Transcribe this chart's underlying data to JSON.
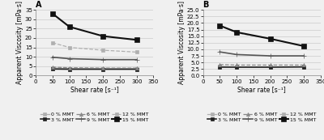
{
  "shear_rates": [
    50,
    100,
    200,
    300
  ],
  "panel_A": {
    "title": "A",
    "ylabel": "Apparent Viscosity [mPa·s]",
    "xlabel": "Shear rate [s⁻¹]",
    "ylim": [
      0,
      35
    ],
    "yticks": [
      0,
      5,
      10,
      15,
      20,
      25,
      30,
      35
    ],
    "xticks": [
      0,
      50,
      100,
      150,
      200,
      250,
      300,
      350
    ],
    "series": [
      {
        "label": "0 % MMT",
        "values": [
          4.0,
          3.8,
          3.7,
          3.7
        ],
        "color": "#b0b0b0",
        "marker": "s",
        "linewidth": 0.9,
        "markersize": 3,
        "linestyle": "-",
        "mfc": "#b0b0b0"
      },
      {
        "label": "3 % MMT",
        "values": [
          3.5,
          3.4,
          3.4,
          3.4
        ],
        "color": "#222222",
        "marker": "s",
        "linewidth": 1.2,
        "markersize": 3.5,
        "linestyle": "-",
        "mfc": "#222222"
      },
      {
        "label": "6 % MMT",
        "values": [
          4.5,
          4.2,
          4.0,
          4.0
        ],
        "color": "#888888",
        "marker": "^",
        "linewidth": 0.9,
        "markersize": 3,
        "linestyle": "--",
        "mfc": "#888888"
      },
      {
        "label": "9 % MMT",
        "values": [
          9.8,
          9.0,
          8.5,
          8.5
        ],
        "color": "#555555",
        "marker": "+",
        "linewidth": 1.2,
        "markersize": 4,
        "linestyle": "-",
        "mfc": "#555555"
      },
      {
        "label": "12 % MMT",
        "values": [
          17.5,
          15.0,
          13.5,
          12.5
        ],
        "color": "#b0b0b0",
        "marker": "s",
        "linewidth": 0.9,
        "markersize": 3,
        "linestyle": "--",
        "mfc": "#b0b0b0"
      },
      {
        "label": "15 % MMT",
        "values": [
          33.0,
          26.0,
          21.0,
          19.0
        ],
        "color": "#111111",
        "marker": "s",
        "linewidth": 1.5,
        "markersize": 4,
        "linestyle": "-",
        "mfc": "#111111"
      }
    ]
  },
  "panel_B": {
    "title": "B",
    "ylabel": "Apparent Viscosity [mPa·s]",
    "xlabel": "Shear rate [s⁻¹]",
    "ylim": [
      0,
      25
    ],
    "yticks": [
      0,
      2.5,
      5,
      7.5,
      10,
      12.5,
      15,
      17.5,
      20,
      22.5,
      25
    ],
    "xticks": [
      0,
      50,
      100,
      150,
      200,
      250,
      300,
      350
    ],
    "series": [
      {
        "label": "0 % MMT",
        "values": [
          3.5,
          3.3,
          3.3,
          3.3
        ],
        "color": "#b0b0b0",
        "marker": "s",
        "linewidth": 0.9,
        "markersize": 3,
        "linestyle": "-",
        "mfc": "#b0b0b0"
      },
      {
        "label": "3 % MMT",
        "values": [
          3.2,
          3.2,
          3.2,
          3.3
        ],
        "color": "#222222",
        "marker": "s",
        "linewidth": 1.2,
        "markersize": 3.5,
        "linestyle": "-",
        "mfc": "#222222"
      },
      {
        "label": "6 % MMT",
        "values": [
          4.2,
          4.0,
          4.0,
          4.0
        ],
        "color": "#888888",
        "marker": "^",
        "linewidth": 0.9,
        "markersize": 3,
        "linestyle": "--",
        "mfc": "#888888"
      },
      {
        "label": "9 % MMT",
        "values": [
          9.0,
          8.0,
          7.5,
          7.5
        ],
        "color": "#555555",
        "marker": "+",
        "linewidth": 1.2,
        "markersize": 4,
        "linestyle": "-",
        "mfc": "#555555"
      },
      {
        "label": "12 % MMT",
        "values": [
          19.0,
          16.2,
          14.0,
          11.2
        ],
        "color": "#b0b0b0",
        "marker": "s",
        "linewidth": 0.9,
        "markersize": 3,
        "linestyle": "--",
        "mfc": "#b0b0b0"
      },
      {
        "label": "15 % MMT",
        "values": [
          19.0,
          16.5,
          14.0,
          11.2
        ],
        "color": "#111111",
        "marker": "s",
        "linewidth": 1.5,
        "markersize": 4,
        "linestyle": "-",
        "mfc": "#111111"
      }
    ]
  },
  "bg_color": "#f0f0f0",
  "legend_fontsize": 4.5,
  "axis_fontsize": 5.5,
  "tick_fontsize": 5,
  "title_fontsize": 7
}
